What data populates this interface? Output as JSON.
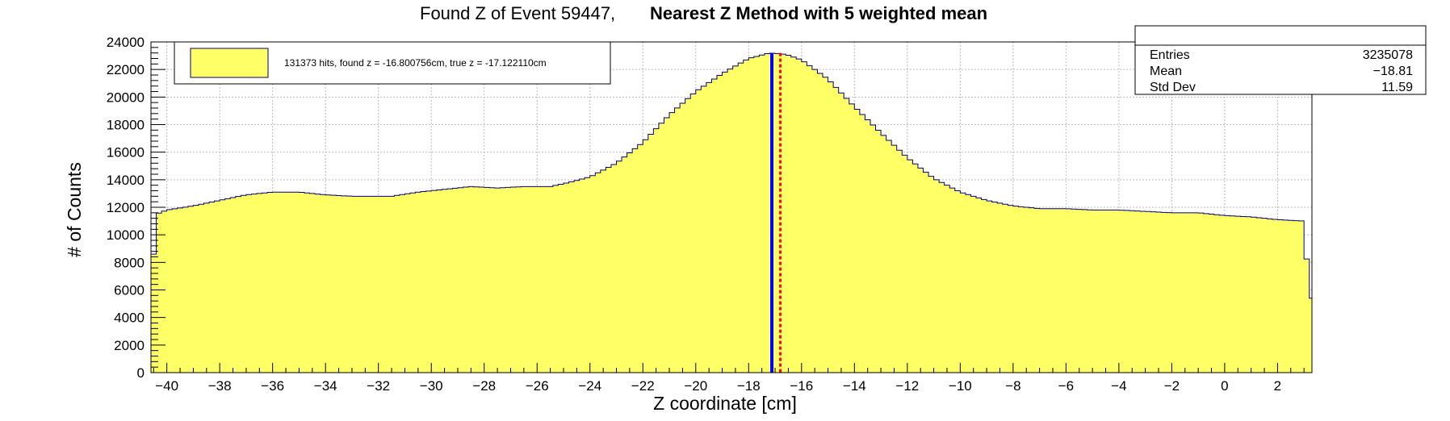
{
  "chart_data": {
    "type": "histogram",
    "title_main": "Found Z of Event 59447,",
    "title_bold": "Nearest Z Method with 5 weighted mean",
    "xlabel": "Z coordinate [cm]",
    "ylabel": "# of Counts",
    "xlim": [
      -40.6,
      3.3
    ],
    "ylim": [
      0,
      24000
    ],
    "x_ticks": [
      -40,
      -38,
      -36,
      -34,
      -32,
      -30,
      -28,
      -26,
      -24,
      -22,
      -20,
      -18,
      -16,
      -14,
      -12,
      -10,
      -8,
      -6,
      -4,
      -2,
      0,
      2
    ],
    "y_ticks": [
      0,
      2000,
      4000,
      6000,
      8000,
      10000,
      12000,
      14000,
      16000,
      18000,
      20000,
      22000,
      24000
    ],
    "x_tick_labels": [
      "−40",
      "−38",
      "−36",
      "−34",
      "−32",
      "−30",
      "−28",
      "−26",
      "−24",
      "−22",
      "−20",
      "−18",
      "−16",
      "−14",
      "−12",
      "−10",
      "−8",
      "−6",
      "−4",
      "−2",
      "0",
      "2"
    ],
    "y_tick_labels": [
      "0",
      "2000",
      "4000",
      "6000",
      "8000",
      "10000",
      "12000",
      "14000",
      "16000",
      "18000",
      "20000",
      "22000",
      "24000"
    ],
    "grid": true,
    "fill_color": "#ffff66",
    "line_color": "#00007f",
    "profile": [
      [
        -40.6,
        5700
      ],
      [
        -40.4,
        11500
      ],
      [
        -40.0,
        11800
      ],
      [
        -39.0,
        12100
      ],
      [
        -38.0,
        12500
      ],
      [
        -37.0,
        12900
      ],
      [
        -36.0,
        13100
      ],
      [
        -35.0,
        13100
      ],
      [
        -34.0,
        12900
      ],
      [
        -33.0,
        12800
      ],
      [
        -32.0,
        12800
      ],
      [
        -31.5,
        12800
      ],
      [
        -30.5,
        13100
      ],
      [
        -29.5,
        13300
      ],
      [
        -28.5,
        13500
      ],
      [
        -27.5,
        13400
      ],
      [
        -26.5,
        13500
      ],
      [
        -25.5,
        13500
      ],
      [
        -24.8,
        13800
      ],
      [
        -24.0,
        14200
      ],
      [
        -23.0,
        15200
      ],
      [
        -22.0,
        16700
      ],
      [
        -21.0,
        18700
      ],
      [
        -20.0,
        20400
      ],
      [
        -19.0,
        21700
      ],
      [
        -18.0,
        22800
      ],
      [
        -17.2,
        23200
      ],
      [
        -16.6,
        23100
      ],
      [
        -16.0,
        22700
      ],
      [
        -15.0,
        21300
      ],
      [
        -14.0,
        19300
      ],
      [
        -13.0,
        17400
      ],
      [
        -12.0,
        15600
      ],
      [
        -11.0,
        14100
      ],
      [
        -10.0,
        13100
      ],
      [
        -9.0,
        12500
      ],
      [
        -8.0,
        12100
      ],
      [
        -7.0,
        11900
      ],
      [
        -6.0,
        11900
      ],
      [
        -5.0,
        11800
      ],
      [
        -4.0,
        11800
      ],
      [
        -3.0,
        11700
      ],
      [
        -2.0,
        11600
      ],
      [
        -1.0,
        11600
      ],
      [
        0.0,
        11400
      ],
      [
        1.0,
        11300
      ],
      [
        2.0,
        11100
      ],
      [
        3.0,
        11000
      ],
      [
        3.2,
        5500
      ],
      [
        3.3,
        5400
      ]
    ],
    "found_z": -16.800756,
    "true_z": -17.12211,
    "found_line_color": "#ff0000",
    "true_line_color": "#0000ff",
    "legend": {
      "text": "131373 hits, found z = -16.800756cm, true z = -17.122110cm",
      "swatch_color": "#ffff66"
    },
    "stats": {
      "entries_label": "Entries",
      "entries_value": "3235078",
      "mean_label": "Mean",
      "mean_value": "−18.81",
      "stddev_label": "Std Dev",
      "stddev_value": "11.59"
    }
  }
}
